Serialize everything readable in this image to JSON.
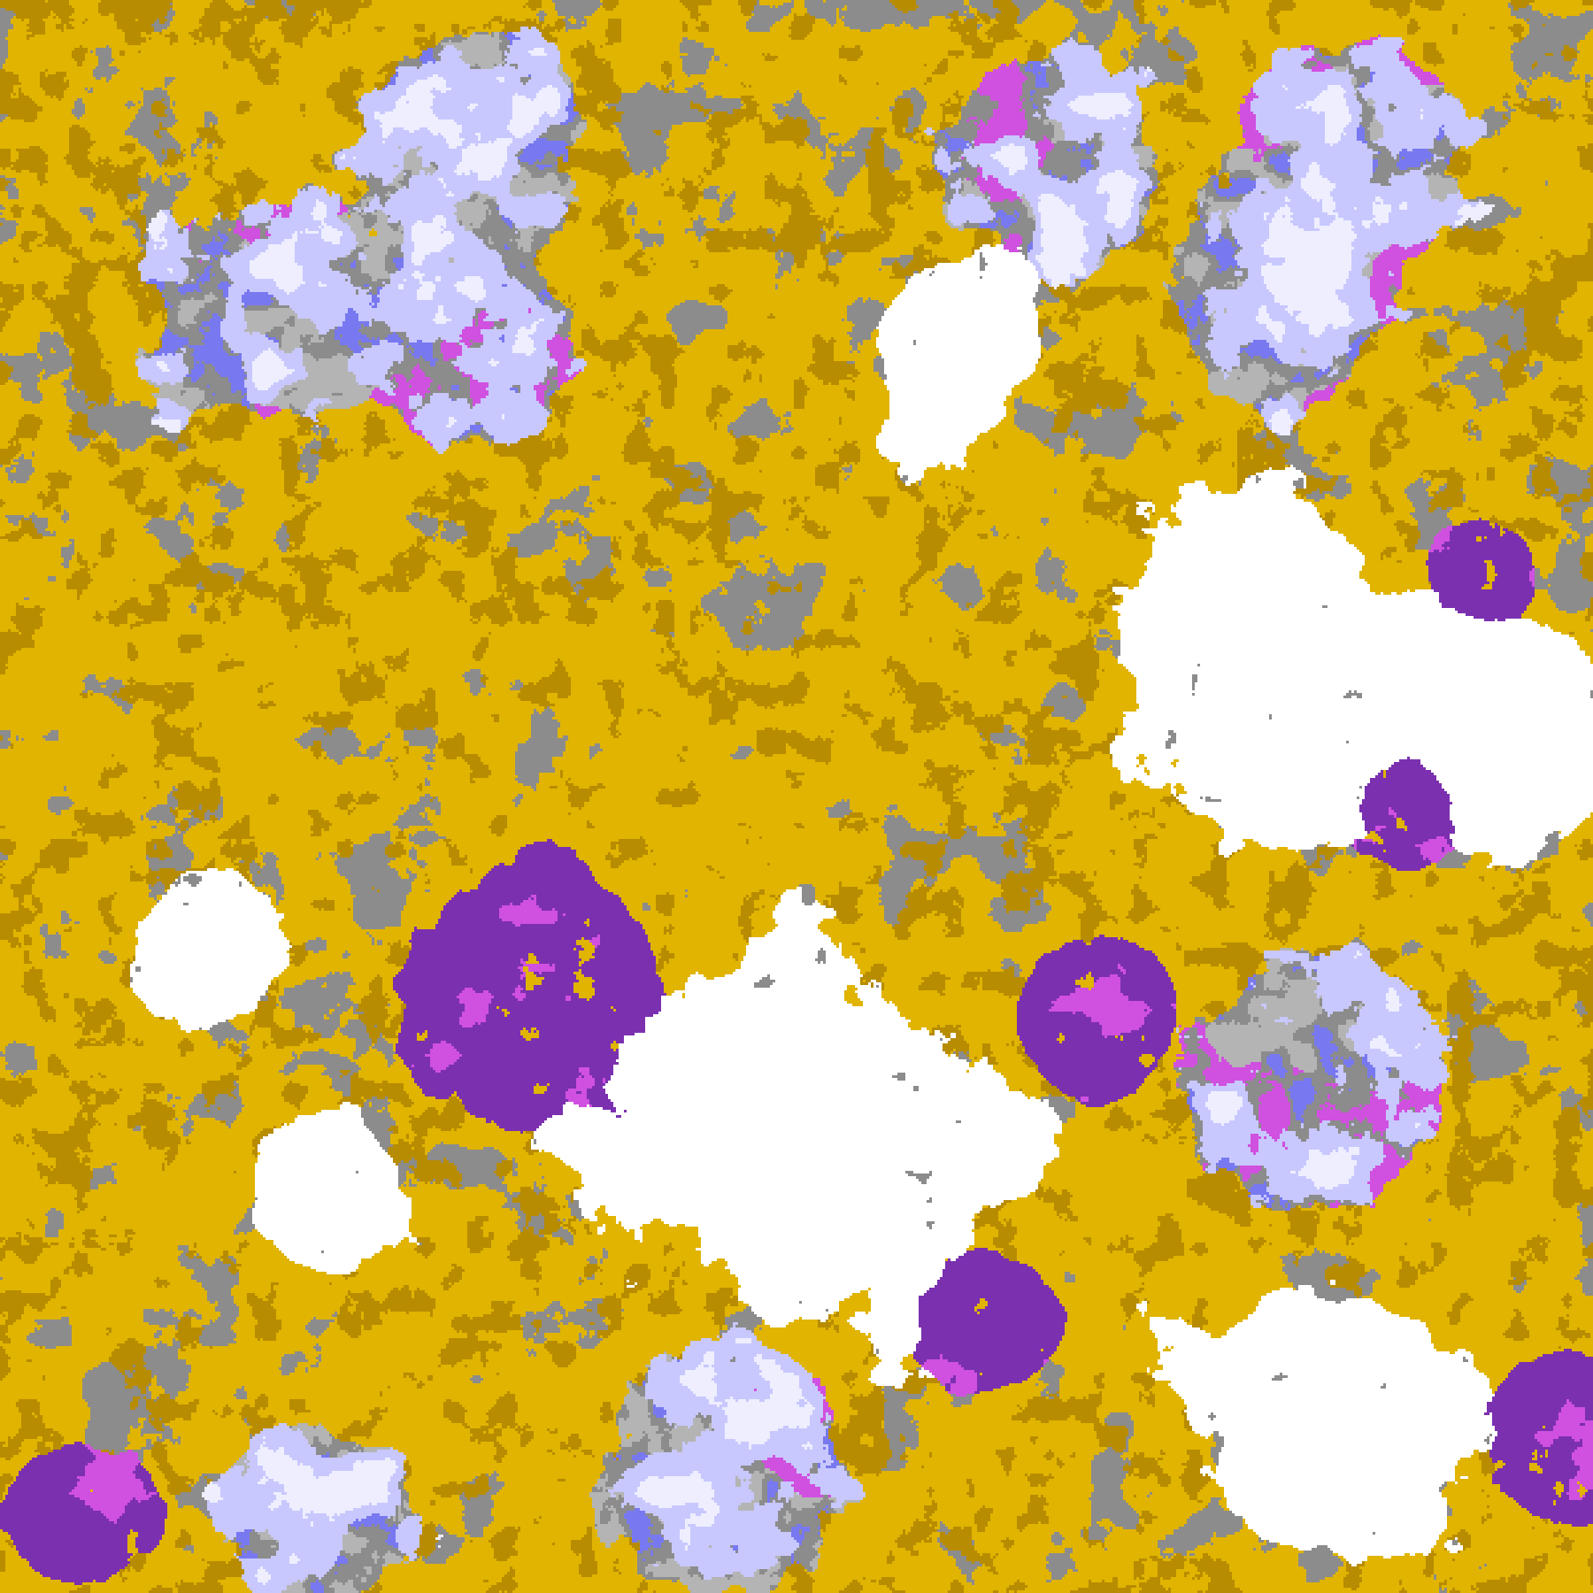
{
  "image": {
    "kind": "false-color satellite classification map",
    "palette": {
      "clear": "#ffffff",
      "gold": "#e0b400",
      "dark_gold": "#b88c00",
      "gray": "#8c8c8c",
      "light_gray": "#b4b4b4",
      "lavender": "#c8c8ff",
      "pale_lavender": "#eeeeff",
      "blue": "#7878f0",
      "magenta": "#d050e0",
      "purple": "#7b30b0"
    }
  }
}
